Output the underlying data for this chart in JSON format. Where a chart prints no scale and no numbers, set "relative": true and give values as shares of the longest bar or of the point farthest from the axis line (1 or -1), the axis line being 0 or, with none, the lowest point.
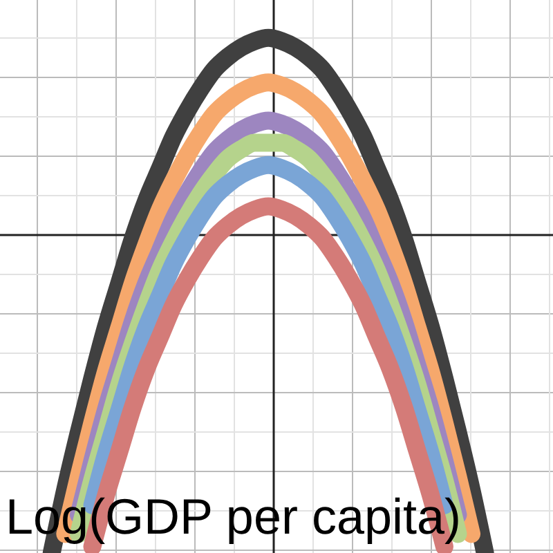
{
  "chart_data": {
    "type": "line",
    "relative": true,
    "xlabel": "Log(GDP per capita)",
    "grid": true,
    "line_style": "solid",
    "categories": [
      null,
      null,
      null,
      null,
      null,
      null,
      null,
      null,
      null,
      null,
      null,
      null,
      null,
      null,
      null,
      null,
      null,
      null,
      null,
      null,
      null,
      null,
      null,
      null,
      null,
      null,
      null,
      null,
      null,
      null,
      null,
      null,
      null,
      null,
      null,
      null,
      null,
      null,
      null,
      null
    ],
    "series": [
      {
        "color": "#404040",
        "values": [
          null,
          null,
          null,
          -1,
          -0.8,
          -0.62,
          -0.45,
          -0.29,
          -0.15,
          -0.01,
          0.11,
          0.21,
          0.31,
          0.39,
          0.46,
          0.52,
          0.56,
          0.59,
          0.61,
          0.62,
          0.61,
          0.59,
          0.56,
          0.52,
          0.46,
          0.39,
          0.31,
          0.21,
          0.11,
          -0.01,
          -0.15,
          -0.29,
          -0.45,
          -0.62,
          -0.8,
          -1,
          null,
          null,
          null,
          null
        ]
      },
      {
        "color": "#f6a86c",
        "values": [
          null,
          null,
          null,
          null,
          -0.94,
          -0.76,
          -0.59,
          -0.43,
          -0.29,
          -0.15,
          -0.03,
          0.08,
          0.17,
          0.25,
          0.32,
          0.38,
          0.42,
          0.45,
          0.47,
          0.48,
          0.47,
          0.45,
          0.42,
          0.38,
          0.32,
          0.25,
          0.17,
          0.08,
          -0.03,
          -0.15,
          -0.29,
          -0.43,
          -0.59,
          -0.76,
          -0.94,
          null,
          null,
          null,
          null,
          null
        ]
      },
      {
        "color": "#9d86c0",
        "values": [
          null,
          null,
          null,
          null,
          null,
          -0.88,
          -0.71,
          -0.55,
          -0.41,
          -0.27,
          -0.15,
          -0.05,
          0.05,
          0.13,
          0.2,
          0.26,
          0.3,
          0.33,
          0.35,
          0.36,
          0.35,
          0.33,
          0.3,
          0.26,
          0.2,
          0.13,
          0.05,
          -0.05,
          -0.15,
          -0.27,
          -0.41,
          -0.55,
          -0.71,
          -0.88,
          null,
          null,
          null,
          null,
          null,
          null
        ]
      },
      {
        "color": "#b5d38c",
        "values": [
          null,
          null,
          null,
          null,
          null,
          -0.94,
          -0.77,
          -0.62,
          -0.47,
          -0.34,
          -0.22,
          -0.11,
          -0.02,
          0.06,
          0.13,
          0.19,
          0.24,
          0.27,
          0.29,
          0.29,
          0.29,
          0.27,
          0.24,
          0.19,
          0.13,
          0.06,
          -0.02,
          -0.11,
          -0.22,
          -0.34,
          -0.47,
          -0.62,
          -0.77,
          -0.94,
          null,
          null,
          null,
          null,
          null,
          null
        ]
      },
      {
        "color": "#7aa5d6",
        "values": [
          null,
          null,
          null,
          null,
          null,
          null,
          -0.85,
          -0.69,
          -0.55,
          -0.41,
          -0.29,
          -0.19,
          -0.09,
          -0.01,
          0.06,
          0.12,
          0.16,
          0.19,
          0.21,
          0.22,
          0.21,
          0.19,
          0.16,
          0.12,
          0.06,
          -0.01,
          -0.09,
          -0.19,
          -0.29,
          -0.41,
          -0.55,
          -0.69,
          -0.85,
          null,
          null,
          null,
          null,
          null,
          null,
          null
        ]
      },
      {
        "color": "#d47b78",
        "values": [
          null,
          null,
          null,
          null,
          null,
          null,
          -0.98,
          -0.82,
          -0.68,
          -0.54,
          -0.42,
          -0.32,
          -0.22,
          -0.14,
          -0.07,
          -0.01,
          0.03,
          0.06,
          0.08,
          0.09,
          0.08,
          0.06,
          0.03,
          -0.01,
          -0.07,
          -0.14,
          -0.22,
          -0.32,
          -0.42,
          -0.54,
          -0.68,
          -0.82,
          -0.98,
          null,
          null,
          null,
          null,
          null,
          null,
          null
        ]
      }
    ]
  }
}
